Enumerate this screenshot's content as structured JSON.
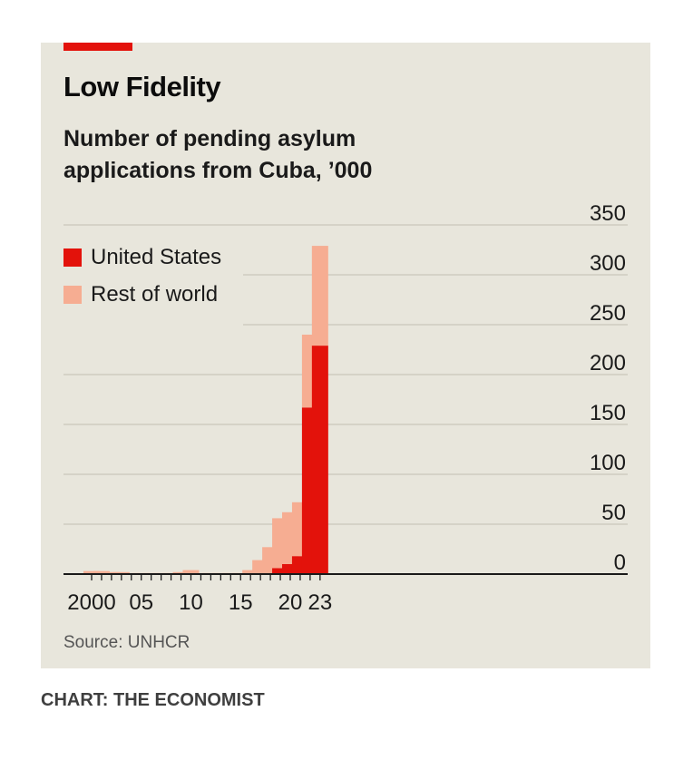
{
  "header": {
    "title": "Low Fidelity",
    "subtitle": "Number of pending asylum applications from Cuba, ’000"
  },
  "footer": {
    "source": "Source: UNHCR",
    "credit": "CHART: THE ECONOMIST"
  },
  "colors": {
    "background": "#e8e6dc",
    "accent": "#e3120b",
    "us": "#e3120b",
    "rest": "#f6ad92",
    "grid": "#c9c6ba",
    "axis": "#1a1a1a"
  },
  "legend": [
    {
      "name": "United States",
      "color": "#e3120b"
    },
    {
      "name": "Rest of world",
      "color": "#f6ad92"
    }
  ],
  "chart_data": {
    "type": "bar",
    "stacked": true,
    "title": "Low Fidelity",
    "subtitle": "Number of pending asylum applications from Cuba, ’000",
    "x": [
      2000,
      2001,
      2002,
      2003,
      2004,
      2005,
      2006,
      2007,
      2008,
      2009,
      2010,
      2011,
      2012,
      2013,
      2014,
      2015,
      2016,
      2017,
      2018,
      2019,
      2020,
      2021,
      2022,
      2023
    ],
    "series": [
      {
        "name": "United States",
        "values": [
          1,
          1,
          0,
          0,
          0,
          0,
          0,
          0,
          0,
          0,
          0,
          0,
          0,
          0,
          0,
          0,
          0,
          0,
          0,
          6,
          10,
          18,
          167,
          229
        ]
      },
      {
        "name": "Rest of world",
        "values": [
          2,
          2,
          2,
          2,
          1,
          1,
          1,
          1,
          1,
          2,
          4,
          1,
          1,
          1,
          1,
          1,
          4,
          14,
          27,
          50,
          52,
          54,
          73,
          100
        ]
      }
    ],
    "yticks": [
      0,
      50,
      100,
      150,
      200,
      250,
      300,
      350
    ],
    "xtick_labels": [
      {
        "year": 2000,
        "label": "2000"
      },
      {
        "year": 2005,
        "label": "05"
      },
      {
        "year": 2010,
        "label": "10"
      },
      {
        "year": 2015,
        "label": "15"
      },
      {
        "year": 2020,
        "label": "20"
      },
      {
        "year": 2023,
        "label": "23"
      }
    ],
    "ylim": [
      0,
      350
    ],
    "grid": true,
    "legend_position": "top-left",
    "source": "Source: UNHCR"
  }
}
